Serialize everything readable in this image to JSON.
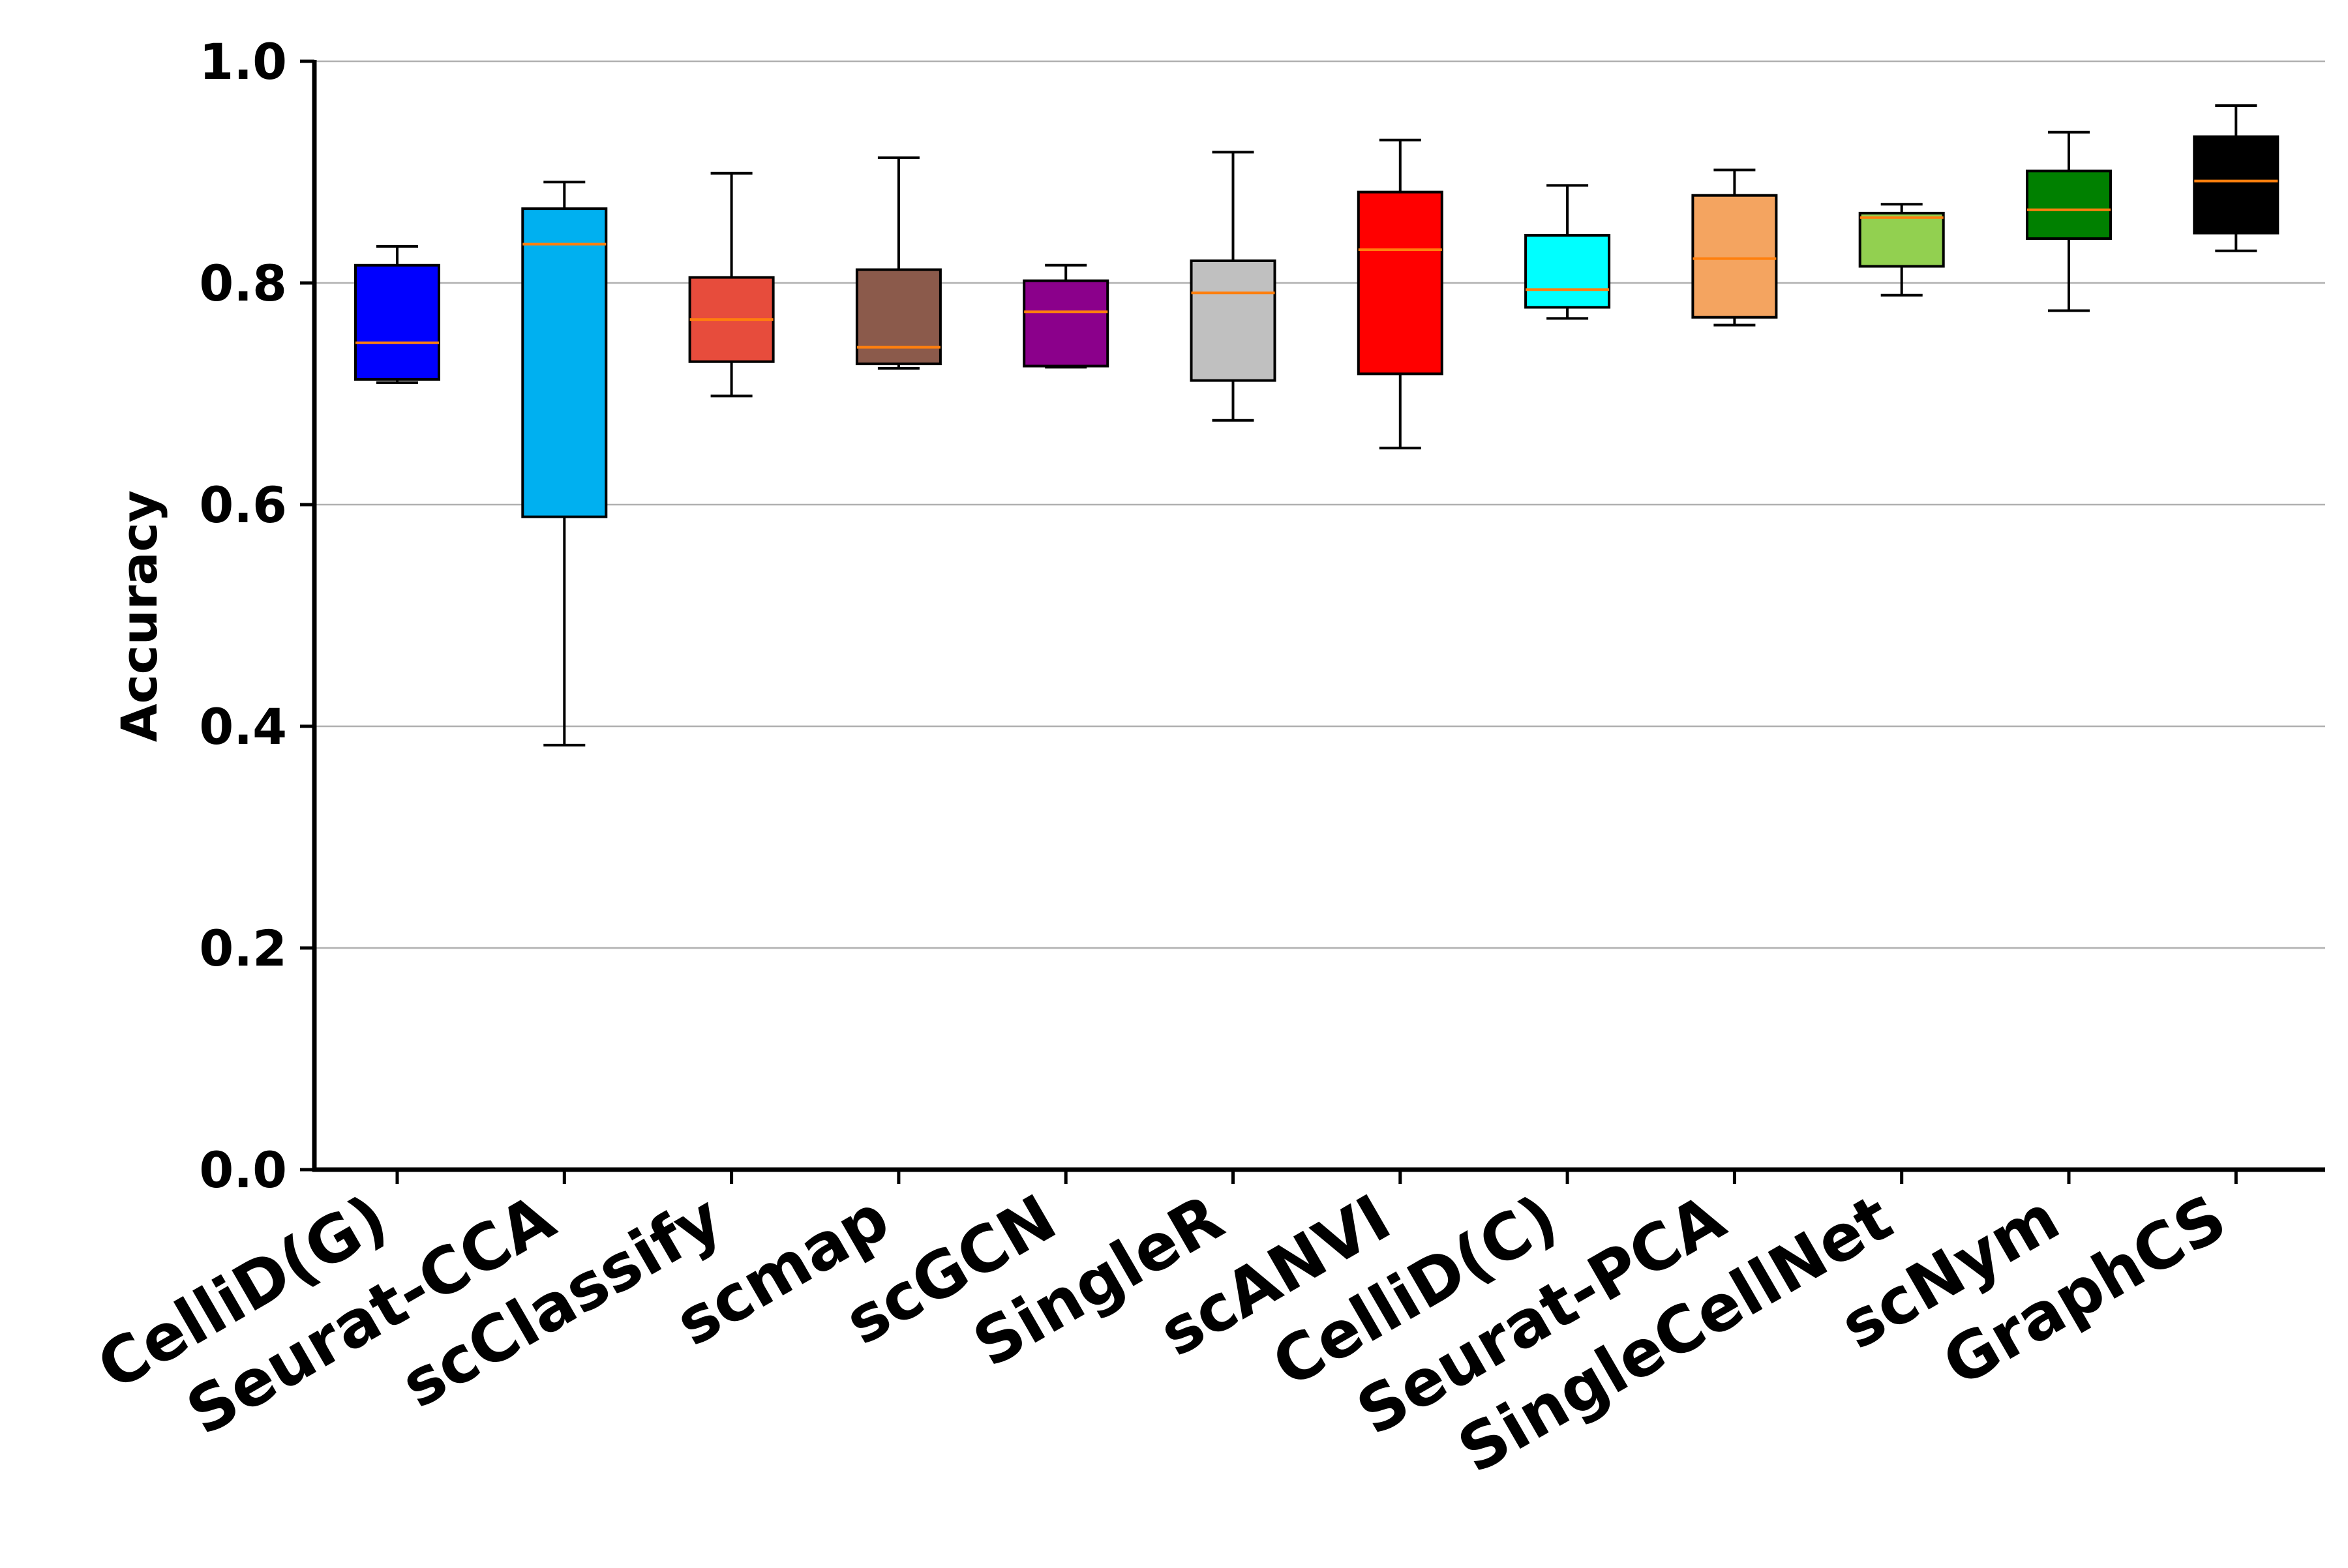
{
  "chart_data": {
    "type": "box",
    "title": "",
    "xlabel": "",
    "ylabel": "Accuracy",
    "ylim": [
      0.0,
      1.0
    ],
    "yticks": [
      0.0,
      0.2,
      0.4,
      0.6,
      0.8,
      1.0
    ],
    "ytick_labels": [
      "0.0",
      "0.2",
      "0.4",
      "0.6",
      "0.8",
      "1.0"
    ],
    "grid": "horizontal",
    "median_color": "#ff7f0e",
    "categories": [
      "CelliD(G)",
      "Seurat-CCA",
      "scClassify",
      "scmap",
      "scGCN",
      "SingleR",
      "scANVI",
      "CelliD(C)",
      "Seurat-PCA",
      "SingleCellNet",
      "scNym",
      "GraphCS"
    ],
    "colors": [
      "#0000ff",
      "#00b0f0",
      "#e74c3c",
      "#8b5a4b",
      "#8b008b",
      "#c0c0c0",
      "#ff0000",
      "#00ffff",
      "#f4a460",
      "#92d050",
      "#008000",
      "#000000"
    ],
    "boxes": [
      {
        "category": "CelliD(G)",
        "whisker_low": 0.71,
        "q1": 0.713,
        "median": 0.746,
        "q3": 0.816,
        "whisker_high": 0.833
      },
      {
        "category": "Seurat-CCA",
        "whisker_low": 0.383,
        "q1": 0.589,
        "median": 0.835,
        "q3": 0.867,
        "whisker_high": 0.891
      },
      {
        "category": "scClassify",
        "whisker_low": 0.698,
        "q1": 0.729,
        "median": 0.767,
        "q3": 0.805,
        "whisker_high": 0.899
      },
      {
        "category": "scmap",
        "whisker_low": 0.723,
        "q1": 0.727,
        "median": 0.742,
        "q3": 0.812,
        "whisker_high": 0.913
      },
      {
        "category": "scGCN",
        "whisker_low": 0.724,
        "q1": 0.725,
        "median": 0.774,
        "q3": 0.802,
        "whisker_high": 0.816
      },
      {
        "category": "SingleR",
        "whisker_low": 0.676,
        "q1": 0.712,
        "median": 0.791,
        "q3": 0.82,
        "whisker_high": 0.918
      },
      {
        "category": "scANVI",
        "whisker_low": 0.651,
        "q1": 0.718,
        "median": 0.83,
        "q3": 0.882,
        "whisker_high": 0.929
      },
      {
        "category": "CelliD(C)",
        "whisker_low": 0.768,
        "q1": 0.778,
        "median": 0.794,
        "q3": 0.843,
        "whisker_high": 0.888
      },
      {
        "category": "Seurat-PCA",
        "whisker_low": 0.762,
        "q1": 0.769,
        "median": 0.822,
        "q3": 0.879,
        "whisker_high": 0.902
      },
      {
        "category": "SingleCellNet",
        "whisker_low": 0.789,
        "q1": 0.815,
        "median": 0.859,
        "q3": 0.863,
        "whisker_high": 0.871
      },
      {
        "category": "scNym",
        "whisker_low": 0.775,
        "q1": 0.84,
        "median": 0.866,
        "q3": 0.901,
        "whisker_high": 0.936
      },
      {
        "category": "GraphCS",
        "whisker_low": 0.829,
        "q1": 0.845,
        "median": 0.892,
        "q3": 0.932,
        "whisker_high": 0.96
      }
    ]
  }
}
